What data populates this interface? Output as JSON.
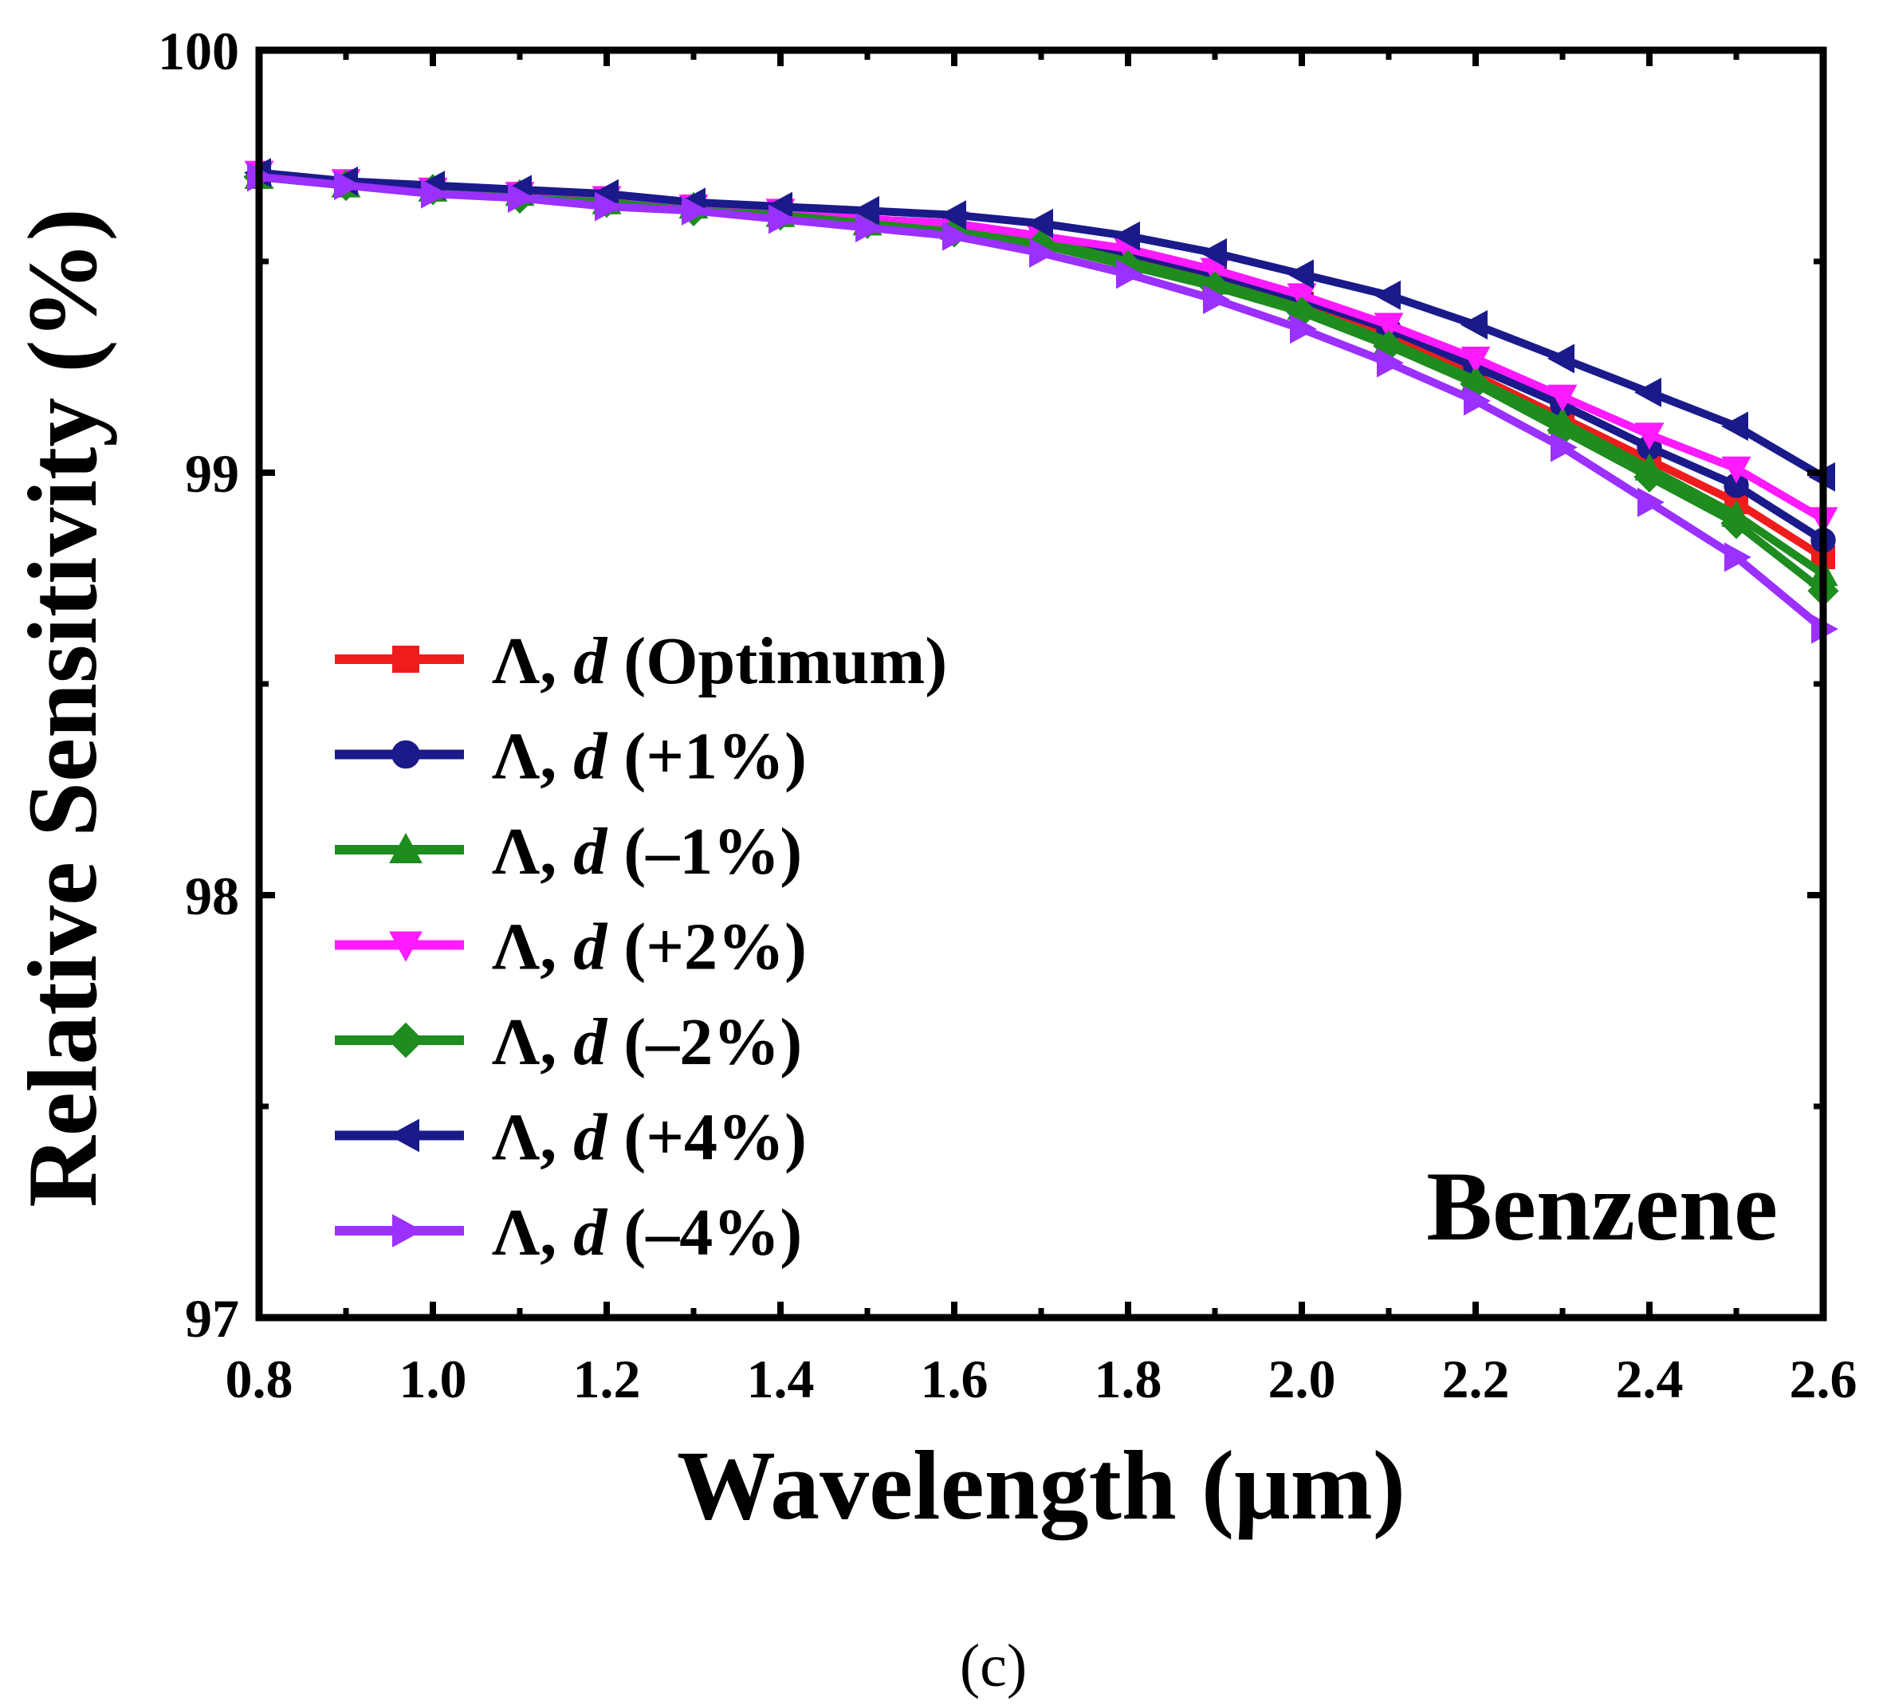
{
  "chart_data": {
    "type": "line",
    "title": "",
    "xlabel": "Wavelength (μm)",
    "ylabel": "Relative Sensitivity (%)",
    "xlim": [
      0.8,
      2.6
    ],
    "ylim": [
      97,
      100
    ],
    "xticks": [
      0.8,
      1.0,
      1.2,
      1.4,
      1.6,
      1.8,
      2.0,
      2.2,
      2.4,
      2.6
    ],
    "xtick_labels": [
      "0.8",
      "1.0",
      "1.2",
      "1.4",
      "1.6",
      "1.8",
      "2.0",
      "2.2",
      "2.4",
      "2.6"
    ],
    "yticks": [
      97,
      98,
      99,
      100
    ],
    "ytick_labels": [
      "97",
      "98",
      "99",
      "100"
    ],
    "grid": false,
    "legend_position": "left-lower",
    "annotation": "Benzene",
    "caption": "(c)",
    "x": [
      0.8,
      0.9,
      1.0,
      1.1,
      1.2,
      1.3,
      1.4,
      1.5,
      1.6,
      1.7,
      1.8,
      1.9,
      2.0,
      2.1,
      2.2,
      2.3,
      2.4,
      2.5,
      2.6
    ],
    "series": [
      {
        "name": "Λ, d (Optimum)",
        "prefix": "Λ, ",
        "var": "d",
        "suffix": " (Optimum)",
        "color": "#ee1c1c",
        "marker": "square",
        "values": [
          99.7,
          99.68,
          99.67,
          99.66,
          99.64,
          99.63,
          99.61,
          99.59,
          99.58,
          99.55,
          99.51,
          99.46,
          99.4,
          99.32,
          99.23,
          99.13,
          99.03,
          98.93,
          98.8
        ]
      },
      {
        "name": "Λ, d (+1%)",
        "prefix": "Λ, ",
        "var": "d",
        "suffix": " (+1%)",
        "color": "#1a1a8a",
        "marker": "circle",
        "values": [
          99.7,
          99.68,
          99.67,
          99.66,
          99.64,
          99.63,
          99.61,
          99.6,
          99.59,
          99.56,
          99.52,
          99.47,
          99.41,
          99.34,
          99.25,
          99.16,
          99.06,
          98.97,
          98.84
        ]
      },
      {
        "name": "Λ, d (–1%)",
        "prefix": "Λ, ",
        "var": "d",
        "suffix": " (–1%)",
        "color": "#1e8c1e",
        "marker": "triangle-up",
        "values": [
          99.7,
          99.68,
          99.67,
          99.66,
          99.64,
          99.63,
          99.61,
          99.59,
          99.58,
          99.55,
          99.5,
          99.45,
          99.39,
          99.31,
          99.22,
          99.12,
          99.01,
          98.9,
          98.76
        ]
      },
      {
        "name": "Λ, d (+2%)",
        "prefix": "Λ, ",
        "var": "d",
        "suffix": " (+2%)",
        "color": "#ff1aff",
        "marker": "triangle-down",
        "values": [
          99.71,
          99.69,
          99.67,
          99.66,
          99.65,
          99.63,
          99.62,
          99.6,
          99.59,
          99.56,
          99.53,
          99.48,
          99.42,
          99.35,
          99.27,
          99.18,
          99.09,
          99.01,
          98.89
        ]
      },
      {
        "name": "Λ, d (–2%)",
        "prefix": "Λ, ",
        "var": "d",
        "suffix": " (–2%)",
        "color": "#1e8c1e",
        "marker": "diamond",
        "values": [
          99.7,
          99.68,
          99.67,
          99.65,
          99.64,
          99.62,
          99.61,
          99.59,
          99.57,
          99.54,
          99.49,
          99.44,
          99.38,
          99.3,
          99.21,
          99.1,
          98.99,
          98.88,
          98.72
        ]
      },
      {
        "name": "Λ, d (+4%)",
        "prefix": "Λ, ",
        "var": "d",
        "suffix": " (+4%)",
        "color": "#1a1a8a",
        "marker": "triangle-left",
        "values": [
          99.71,
          99.69,
          99.68,
          99.67,
          99.66,
          99.64,
          99.63,
          99.62,
          99.61,
          99.59,
          99.56,
          99.52,
          99.47,
          99.42,
          99.35,
          99.27,
          99.19,
          99.11,
          98.99
        ]
      },
      {
        "name": "Λ, d (–4%)",
        "prefix": "Λ, ",
        "var": "d",
        "suffix": " (–4%)",
        "color": "#9b30ff",
        "marker": "triangle-right",
        "values": [
          99.7,
          99.68,
          99.66,
          99.65,
          99.63,
          99.62,
          99.6,
          99.58,
          99.56,
          99.52,
          99.47,
          99.41,
          99.34,
          99.26,
          99.17,
          99.06,
          98.93,
          98.8,
          98.63
        ]
      }
    ]
  }
}
